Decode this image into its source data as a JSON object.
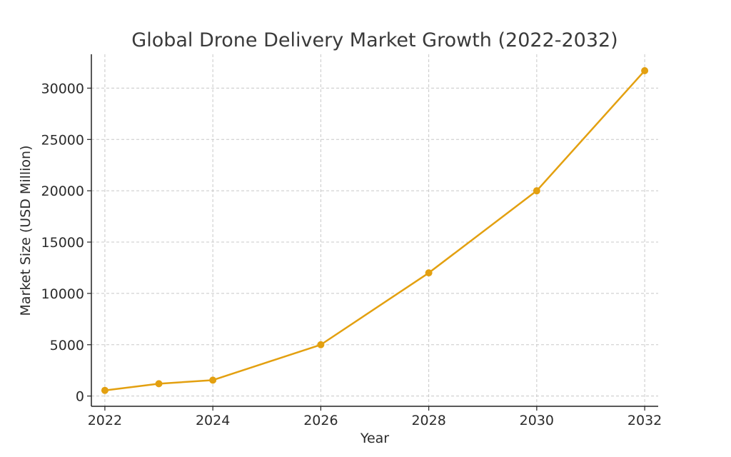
{
  "colors": {
    "series": "#E3A010",
    "axis": "#222222",
    "grid": "#c8c8c8",
    "text": "#2b2b2b"
  },
  "chart_data": {
    "type": "line",
    "title": "Global Drone Delivery Market Growth (2022-2032)",
    "xlabel": "Year",
    "ylabel": "Market Size (USD Million)",
    "x": [
      2022,
      2023,
      2024,
      2026,
      2028,
      2030,
      2032
    ],
    "series": [
      {
        "values": [
          550,
          1200,
          1550,
          5000,
          12000,
          20000,
          31700
        ]
      }
    ],
    "xticks": [
      2022,
      2024,
      2026,
      2028,
      2030,
      2032
    ],
    "yticks": [
      0,
      5000,
      10000,
      15000,
      20000,
      25000,
      30000
    ],
    "xlim": [
      2021.75,
      2032.25
    ],
    "ylim": [
      -1000,
      33300
    ],
    "grid": true,
    "markers": true
  }
}
